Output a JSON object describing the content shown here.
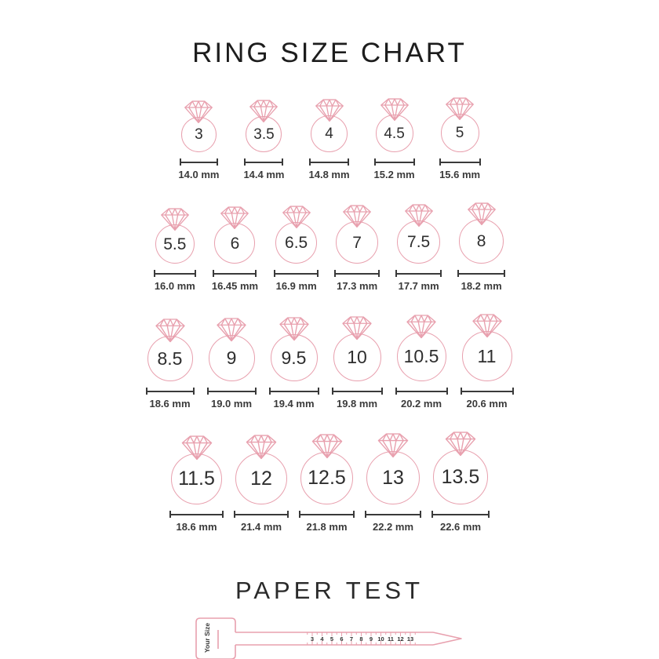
{
  "title": "RING SIZE CHART",
  "colors": {
    "accent_pink": "#E8A0AE",
    "text_dark": "#3A3A3A"
  },
  "rows": [
    {
      "rings": [
        {
          "size": "3",
          "mm": "14.0 mm"
        },
        {
          "size": "3.5",
          "mm": "14.4 mm"
        },
        {
          "size": "4",
          "mm": "14.8 mm"
        },
        {
          "size": "4.5",
          "mm": "15.2 mm"
        },
        {
          "size": "5",
          "mm": "15.6 mm"
        }
      ]
    },
    {
      "rings": [
        {
          "size": "5.5",
          "mm": "16.0 mm"
        },
        {
          "size": "6",
          "mm": "16.45 mm"
        },
        {
          "size": "6.5",
          "mm": "16.9 mm"
        },
        {
          "size": "7",
          "mm": "17.3 mm"
        },
        {
          "size": "7.5",
          "mm": "17.7 mm"
        },
        {
          "size": "8",
          "mm": "18.2 mm"
        }
      ]
    },
    {
      "rings": [
        {
          "size": "8.5",
          "mm": "18.6 mm"
        },
        {
          "size": "9",
          "mm": "19.0 mm"
        },
        {
          "size": "9.5",
          "mm": "19.4 mm"
        },
        {
          "size": "10",
          "mm": "19.8 mm"
        },
        {
          "size": "10.5",
          "mm": "20.2 mm"
        },
        {
          "size": "11",
          "mm": "20.6 mm"
        }
      ]
    },
    {
      "rings": [
        {
          "size": "11.5",
          "mm": "18.6 mm"
        },
        {
          "size": "12",
          "mm": "21.4 mm"
        },
        {
          "size": "12.5",
          "mm": "21.8 mm"
        },
        {
          "size": "13",
          "mm": "22.2 mm"
        },
        {
          "size": "13.5",
          "mm": "22.6 mm"
        }
      ]
    }
  ],
  "paper_test": {
    "heading": "PAPER TEST",
    "tab_label": "Your Size",
    "ruler_numbers": [
      "3",
      "4",
      "5",
      "6",
      "7",
      "8",
      "9",
      "10",
      "11",
      "12",
      "13"
    ]
  }
}
